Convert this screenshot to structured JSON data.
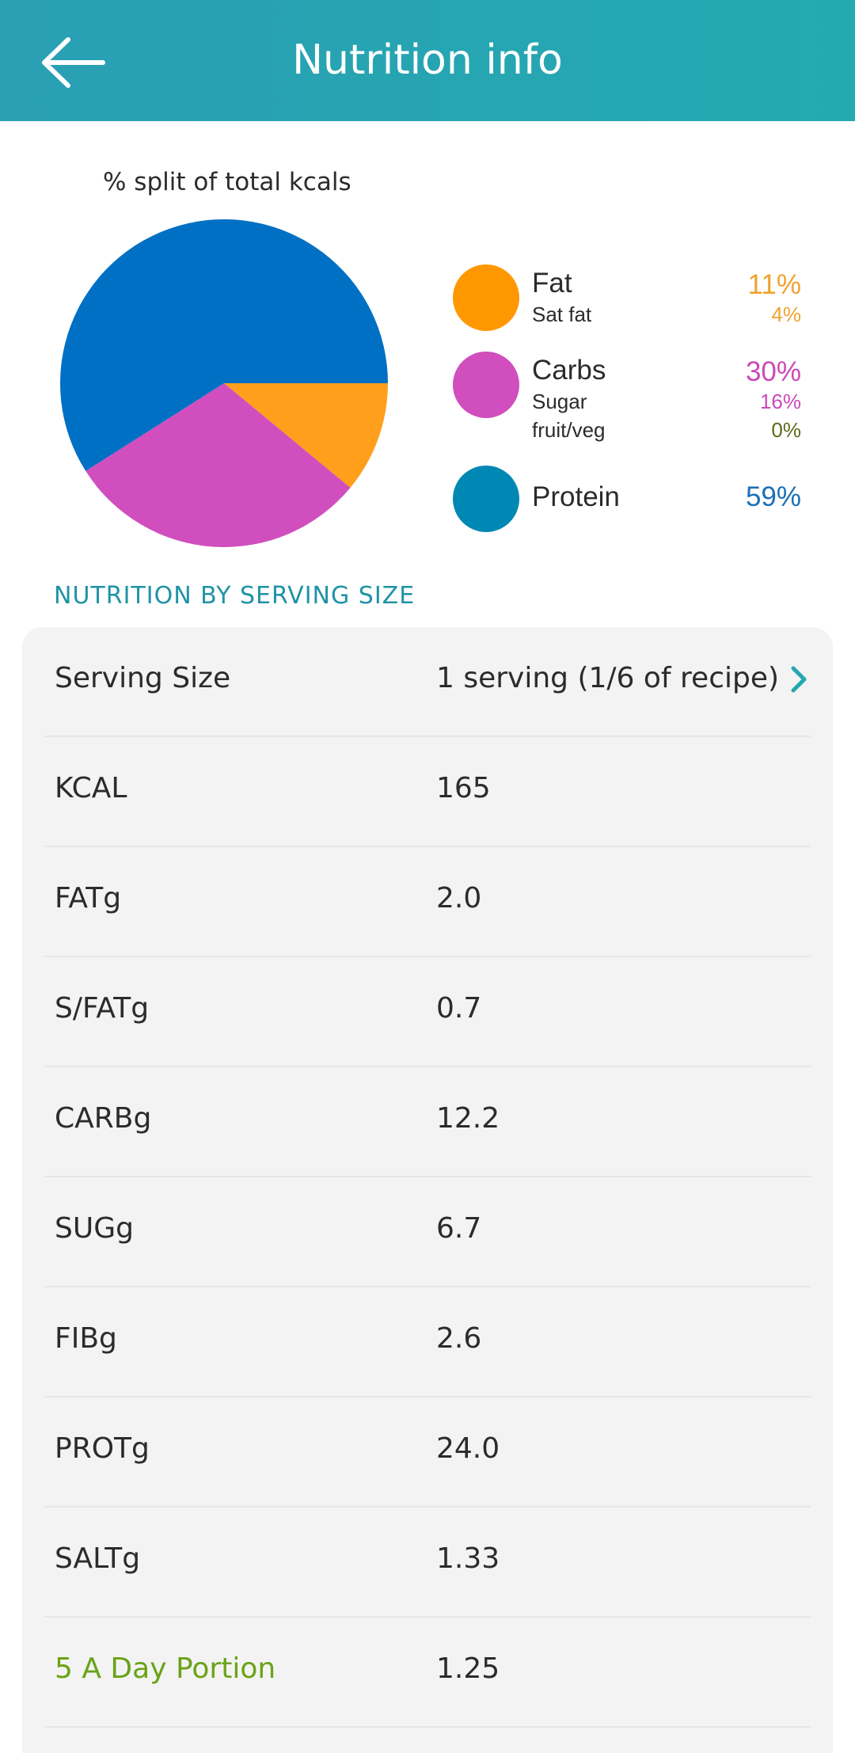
{
  "header": {
    "title": "Nutrition info"
  },
  "chart": {
    "caption": "% split of total kcals",
    "legend": [
      {
        "name": "Fat",
        "pct": "11%",
        "color": "#ff9800",
        "pct_color": "#f0a22e",
        "subs": [
          {
            "label": "Sat fat",
            "pct": "4%",
            "color": "#f0a22e"
          }
        ]
      },
      {
        "name": "Carbs",
        "pct": "30%",
        "color": "#d04ebd",
        "pct_color": "#cc49b8",
        "subs": [
          {
            "label": "Sugar",
            "pct": "16%",
            "color": "#cc49b8"
          },
          {
            "label": "fruit/veg",
            "pct": "0%",
            "color": "#5a6b1a"
          }
        ]
      },
      {
        "name": "Protein",
        "pct": "59%",
        "color": "#0088b5",
        "pct_color": "#1b6fb7",
        "subs": []
      }
    ]
  },
  "chart_data": {
    "type": "pie",
    "title": "% split of total kcals",
    "categories": [
      "Fat",
      "Carbs",
      "Protein"
    ],
    "values": [
      11,
      30,
      59
    ],
    "colors": [
      "#ff9f1c",
      "#d04ebd",
      "#0070c4"
    ]
  },
  "nutrition": {
    "section_title": "NUTRITION BY SERVING SIZE",
    "rows": [
      {
        "label": "Serving Size",
        "value": "1 serving (1/6 of recipe)"
      },
      {
        "label": "KCAL",
        "value": "165"
      },
      {
        "label": "FATg",
        "value": "2.0"
      },
      {
        "label": "S/FATg",
        "value": "0.7"
      },
      {
        "label": "CARBg",
        "value": "12.2"
      },
      {
        "label": "SUGg",
        "value": "6.7"
      },
      {
        "label": "FIBg",
        "value": "2.6"
      },
      {
        "label": "PROTg",
        "value": "24.0"
      },
      {
        "label": "SALTg",
        "value": "1.33"
      },
      {
        "label": "5 A Day Portion",
        "value": "1.25",
        "label_color": "#6aa317"
      }
    ]
  },
  "colors": {
    "header": "#25a6b2",
    "accent": "#1f93a6",
    "card": "#f3f3f3"
  }
}
